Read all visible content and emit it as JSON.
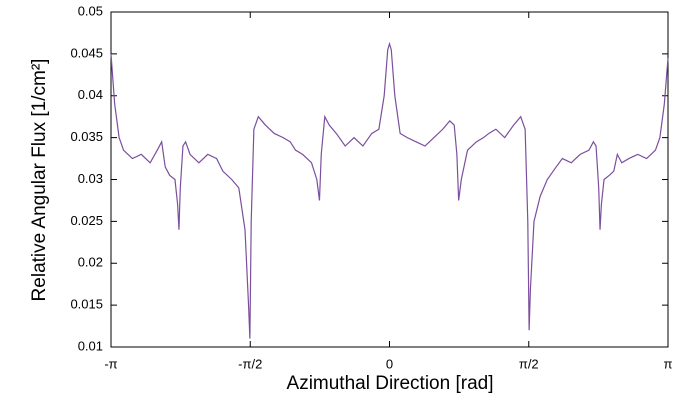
{
  "chart_data": {
    "type": "line",
    "xlabel": "Azimuthal Direction [rad]",
    "ylabel": "Relative Angular Flux [1/cm²]",
    "color": "#7b4f9d",
    "x": [
      -3.1416,
      -3.1,
      -3.05,
      -3.0,
      -2.9,
      -2.8,
      -2.7,
      -2.62,
      -2.57,
      -2.53,
      -2.48,
      -2.42,
      -2.39,
      -2.375,
      -2.36,
      -2.33,
      -2.3,
      -2.25,
      -2.15,
      -2.05,
      -1.95,
      -1.88,
      -1.78,
      -1.7,
      -1.63,
      -1.59,
      -1.575,
      -1.56,
      -1.53,
      -1.48,
      -1.4,
      -1.3,
      -1.2,
      -1.12,
      -1.06,
      -0.98,
      -0.88,
      -0.82,
      -0.79,
      -0.77,
      -0.73,
      -0.68,
      -0.6,
      -0.5,
      -0.4,
      -0.3,
      -0.2,
      -0.12,
      -0.06,
      -0.02,
      0,
      0.02,
      0.06,
      0.12,
      0.2,
      0.3,
      0.4,
      0.5,
      0.6,
      0.68,
      0.73,
      0.76,
      0.78,
      0.81,
      0.88,
      0.98,
      1.06,
      1.12,
      1.2,
      1.3,
      1.4,
      1.48,
      1.53,
      1.56,
      1.575,
      1.59,
      1.63,
      1.7,
      1.78,
      1.88,
      1.95,
      2.05,
      2.15,
      2.25,
      2.3,
      2.33,
      2.36,
      2.375,
      2.39,
      2.42,
      2.48,
      2.53,
      2.57,
      2.62,
      2.7,
      2.8,
      2.9,
      3.0,
      3.05,
      3.1,
      3.1416
    ],
    "values": [
      0.045,
      0.039,
      0.035,
      0.0335,
      0.0325,
      0.033,
      0.032,
      0.0335,
      0.0345,
      0.0315,
      0.0305,
      0.03,
      0.027,
      0.024,
      0.029,
      0.034,
      0.0345,
      0.033,
      0.032,
      0.033,
      0.0325,
      0.031,
      0.03,
      0.029,
      0.024,
      0.015,
      0.011,
      0.025,
      0.036,
      0.0375,
      0.0365,
      0.0355,
      0.035,
      0.0345,
      0.0335,
      0.033,
      0.032,
      0.03,
      0.0275,
      0.033,
      0.0375,
      0.0365,
      0.0355,
      0.034,
      0.035,
      0.034,
      0.0355,
      0.036,
      0.04,
      0.0455,
      0.0462,
      0.0455,
      0.04,
      0.0355,
      0.035,
      0.0345,
      0.034,
      0.035,
      0.036,
      0.037,
      0.0365,
      0.033,
      0.0275,
      0.03,
      0.0335,
      0.0345,
      0.035,
      0.0355,
      0.036,
      0.035,
      0.0365,
      0.0375,
      0.036,
      0.025,
      0.012,
      0.017,
      0.025,
      0.028,
      0.03,
      0.0315,
      0.0325,
      0.032,
      0.033,
      0.0335,
      0.0345,
      0.034,
      0.029,
      0.024,
      0.027,
      0.03,
      0.0305,
      0.031,
      0.033,
      0.032,
      0.0325,
      0.033,
      0.0325,
      0.0335,
      0.035,
      0.039,
      0.0445
    ],
    "xlim": [
      -3.1416,
      3.1416
    ],
    "xticks": [
      {
        "value": -3.1416,
        "label": "-π"
      },
      {
        "value": -1.5708,
        "label": "-π/2"
      },
      0,
      {
        "value": 1.5708,
        "label": "π/2"
      },
      {
        "value": 3.1416,
        "label": "π"
      }
    ],
    "ylim": [
      0.01,
      0.05
    ],
    "yticks": [
      0.01,
      0.015,
      0.02,
      0.025,
      0.03,
      0.035,
      0.04,
      0.045,
      0.05
    ]
  }
}
